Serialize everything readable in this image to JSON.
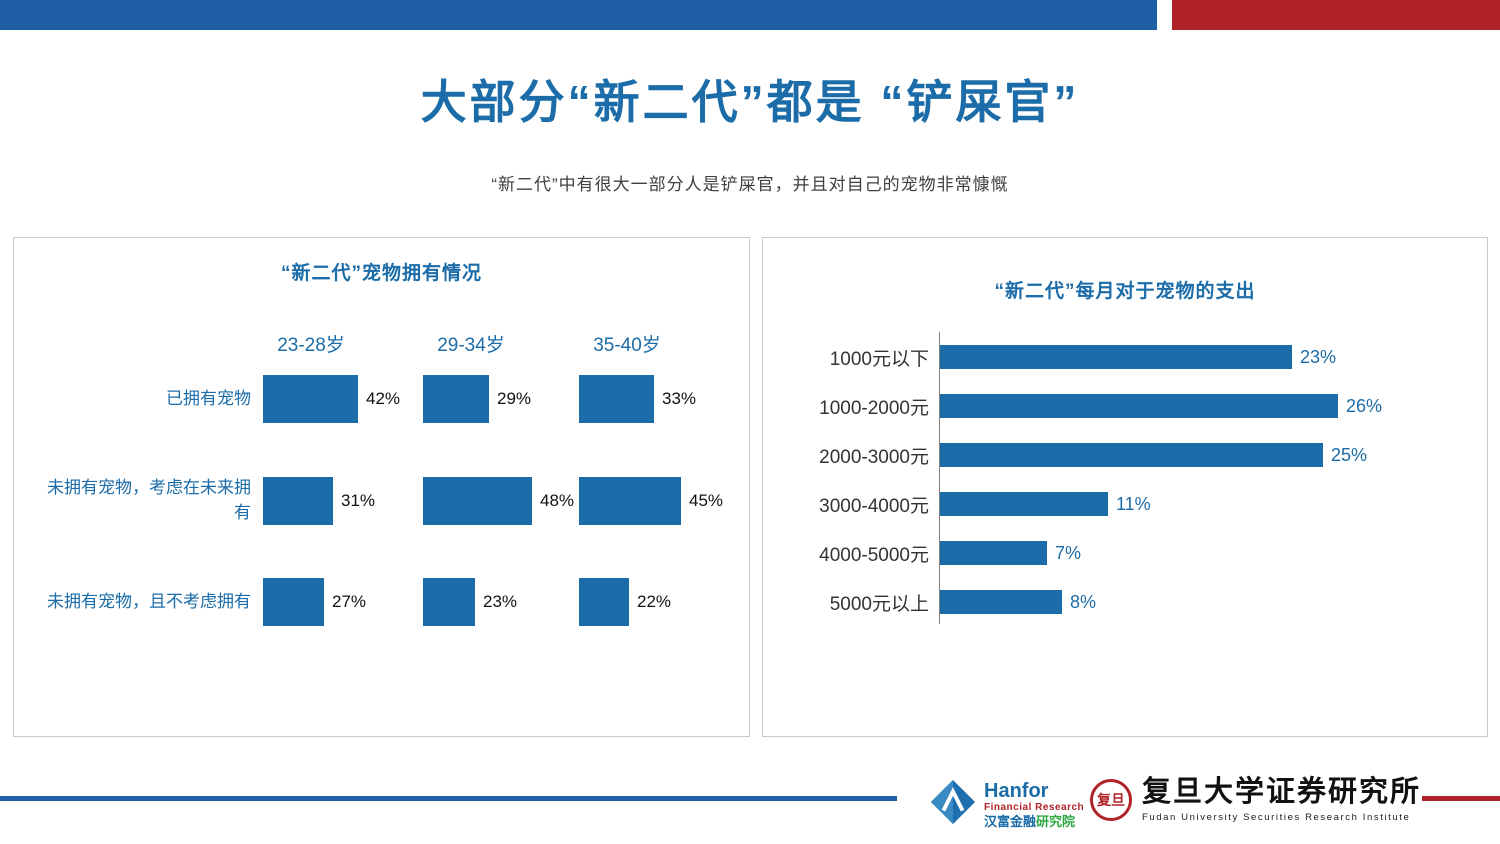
{
  "page": {
    "title": "大部分“新二代”都是  “铲屎官”",
    "subtitle": "“新二代”中有很大一部分人是铲屎官，并且对自己的宠物非常慷慨"
  },
  "colors": {
    "primary_blue": "#1B6CA8",
    "accent_red": "#AF2228",
    "bar_blue": "#1B6CA8"
  },
  "chart_data": [
    {
      "type": "bar",
      "orientation": "horizontal",
      "title": "“新二代”宠物拥有情况",
      "group_headers": [
        "23-28岁",
        "29-34岁",
        "35-40岁"
      ],
      "categories": [
        "已拥有宠物",
        "未拥有宠物，考虑在未来拥有",
        "未拥有宠物，且不考虑拥有"
      ],
      "series": [
        {
          "name": "23-28岁",
          "values": [
            42,
            31,
            27
          ]
        },
        {
          "name": "29-34岁",
          "values": [
            29,
            48,
            23
          ]
        },
        {
          "name": "35-40岁",
          "values": [
            33,
            45,
            22
          ]
        }
      ],
      "value_suffix": "%",
      "legend_position": "top",
      "grid": false
    },
    {
      "type": "bar",
      "orientation": "horizontal",
      "title": "“新二代”每月对于宠物的支出",
      "categories": [
        "1000元以下",
        "1000-2000元",
        "2000-3000元",
        "3000-4000元",
        "4000-5000元",
        "5000元以上"
      ],
      "values": [
        23,
        26,
        25,
        11,
        7,
        8
      ],
      "value_suffix": "%",
      "xlim": [
        0,
        30
      ],
      "grid": false
    }
  ],
  "footer": {
    "hanfor": {
      "brand": "Hanfor",
      "brand_sub": "Financial Research",
      "cn_main": "汉富金融",
      "cn_suffix": "研究院"
    },
    "fudan": {
      "seal_text": "复旦",
      "cn_name": "复旦大学证券研究所",
      "en_name": "Fudan University Securities Research Institute"
    }
  }
}
